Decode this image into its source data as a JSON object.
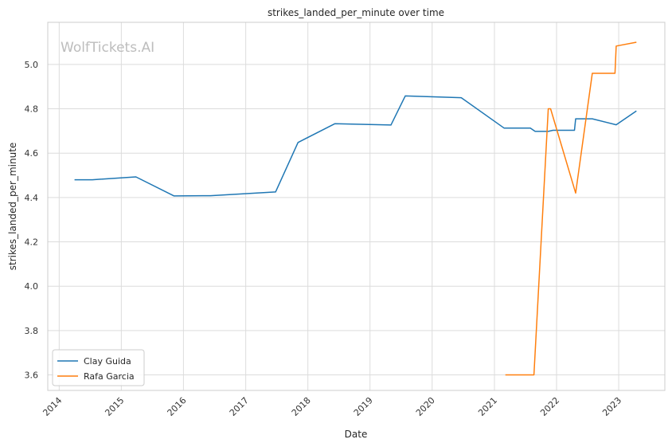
{
  "chart_data": {
    "type": "line",
    "title": "strikes_landed_per_minute over time",
    "xlabel": "Date",
    "ylabel": "strikes_landed_per_minute",
    "watermark": "WolfTickets.AI",
    "x_ticks": [
      "2014",
      "2015",
      "2016",
      "2017",
      "2018",
      "2019",
      "2020",
      "2021",
      "2022",
      "2023"
    ],
    "y_ticks": [
      "3.6",
      "3.8",
      "4.0",
      "4.2",
      "4.4",
      "4.6",
      "4.8",
      "5.0"
    ],
    "xlim": [
      "2013-10-26",
      "2023-09-29"
    ],
    "ylim": [
      3.53,
      5.19
    ],
    "grid": true,
    "legend_position": "lower-left",
    "series": [
      {
        "name": "Clay Guida",
        "color": "#1f77b4",
        "points": [
          [
            "2014-04-01",
            4.48
          ],
          [
            "2014-07-15",
            4.48
          ],
          [
            "2015-03-28",
            4.493
          ],
          [
            "2015-11-07",
            4.407
          ],
          [
            "2016-06-08",
            4.408
          ],
          [
            "2017-06-25",
            4.425
          ],
          [
            "2017-11-04",
            4.648
          ],
          [
            "2018-06-09",
            4.733
          ],
          [
            "2019-05-04",
            4.727
          ],
          [
            "2019-07-27",
            4.858
          ],
          [
            "2020-06-20",
            4.85
          ],
          [
            "2021-02-27",
            4.713
          ],
          [
            "2021-07-31",
            4.713
          ],
          [
            "2021-08-28",
            4.698
          ],
          [
            "2021-11-13",
            4.698
          ],
          [
            "2021-12-11",
            4.703
          ],
          [
            "2022-04-16",
            4.703
          ],
          [
            "2022-04-23",
            4.755
          ],
          [
            "2022-07-30",
            4.755
          ],
          [
            "2022-12-17",
            4.728
          ],
          [
            "2023-04-15",
            4.79
          ]
        ]
      },
      {
        "name": "Rafa Garcia",
        "color": "#ff7f0e",
        "points": [
          [
            "2021-03-06",
            3.6
          ],
          [
            "2021-08-21",
            3.6
          ],
          [
            "2021-11-13",
            4.8
          ],
          [
            "2021-11-27",
            4.8
          ],
          [
            "2022-04-23",
            4.42
          ],
          [
            "2022-07-30",
            4.96
          ],
          [
            "2022-12-10",
            4.96
          ],
          [
            "2022-12-17",
            5.083
          ],
          [
            "2023-04-15",
            5.1
          ]
        ]
      }
    ]
  }
}
